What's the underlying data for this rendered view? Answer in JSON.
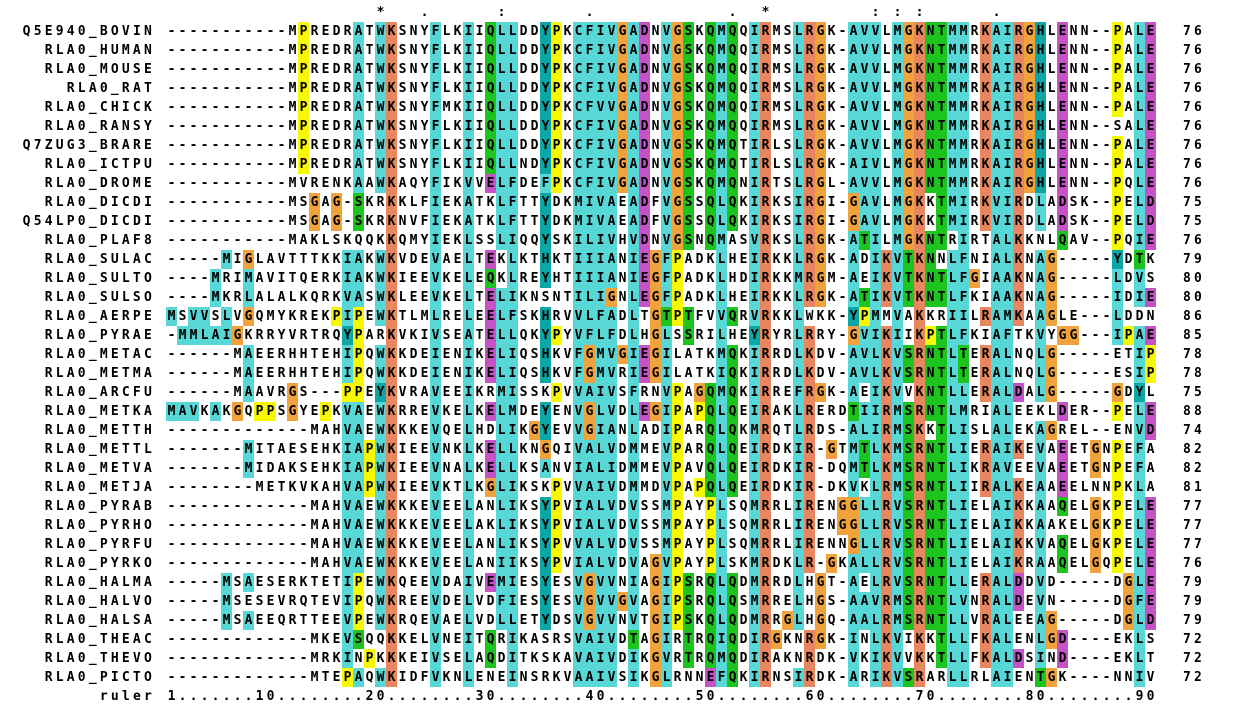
{
  "alignment": {
    "columns": 90,
    "conservation_line": "                   *   .      :       .            .  *         : : :      .              ",
    "ruler": {
      "label": "ruler",
      "line": "1.......10........20........30........40........50........60........70........80........90"
    },
    "palette": {
      "background": "#ffffff",
      "text": "#000000",
      "hydrophobic_cyan": "#58d7d7",
      "aromatic_teal": "#0ba6a6",
      "proline_yellow": "#f8f800",
      "glycine_orange": "#f0a33c",
      "polar_green": "#1ec41e",
      "basic_salmon": "#e8875f",
      "acidic_magenta": "#c653c6"
    },
    "rows": [
      {
        "name": "Q5E940_BOVIN",
        "seq": "-----------MPREDRATWKSNYFLKIIQLLDDYPKCFIVGADNVGSKQMQQIRMSLRGK-AVVLMGKNTMMRKAIRGHLENN--PALE",
        "end": "76"
      },
      {
        "name": "RLA0_HUMAN",
        "seq": "-----------MPREDRATWKSNYFLKIIQLLDDYPKCFIVGADNVGSKQMQQIRMSLRGK-AVVLMGKNTMMRKAIRGHLENN--PALE",
        "end": "76"
      },
      {
        "name": "RLA0_MOUSE",
        "seq": "-----------MPREDRATWKSNYFLKIIQLLDDYPKCFIVGADNVGSKQMQQIRMSLRGK-AVVLMGKNTMMRKAIRGHLENN--PALE",
        "end": "76"
      },
      {
        "name": "RLA0_RAT",
        "seq": "-----------MPREDRATWKSNYFLKIIQLLDDYPKCFIVGADNVGSKQMQQIRMSLRGK-AVVLMGKNTMMRKAIRGHLENN--PALE",
        "end": "76"
      },
      {
        "name": "RLA0_CHICK",
        "seq": "-----------MPREDRATWKSNYFMKIIQLLDDYPKCFVVGADNVGSKQMQQIRMSLRGK-AVVLMGKNTMMRKAIRGHLENN--PALE",
        "end": "76"
      },
      {
        "name": "RLA0_RANSY",
        "seq": "-----------MPREDRATWKSNYFLKIIQLLDDYPKCFIVGADNVGSKQMQQIRMSLRGK-AVVLMGKNTMMRKAIRGHLENN--SALE",
        "end": "76"
      },
      {
        "name": "Q7ZUG3_BRARE",
        "seq": "-----------MPREDRATWKSNYFLKIIQLLDDYPKCFIVGADNVGSKQMQTIRLSLRGK-AVVLMGKNTMMRKAIRGHLENN--PALE",
        "end": "76"
      },
      {
        "name": "RLA0_ICTPU",
        "seq": "-----------MPREDRATWKSNYFLKIIQLLNDYPKCFIVGADNVGSKQMQTIRLSLRGK-AIVLMGKNTMMRKAIRGHLENN--PALE",
        "end": "76"
      },
      {
        "name": "RLA0_DROME",
        "seq": "-----------MVRENKAAWKAQYFIKVVELFDEFPKCFIVGADNVGSKQMQNIRTSLRGL-AVVLMGKNTMMRKAIRGHLENN--PQLE",
        "end": "76"
      },
      {
        "name": "RLA0_DICDI",
        "seq": "-----------MSGAG-SKRKKLFIEKATKLFTTYDKMIVAEADFVGSSQLQKIRKSIRGI-GAVLMGKKTMIRKVIRDLADSK--PELD",
        "end": "75"
      },
      {
        "name": "Q54LP0_DICDI",
        "seq": "-----------MSGAG-SKRKNVFIEKATKLFTTYDKMIVAEADFVGSSQLQKIRKSIRGI-GAVLMGKKTMIRKVIRDLADSK--PELD",
        "end": "75"
      },
      {
        "name": "RLA0_PLAF8",
        "seq": "-----------MAKLSKQQKKQMYIEKLSSLIQQYSKILIVHVDNVGSNQMASVRKSLRGK-ATILMGKNTRIRTALKKNLQAV--PQIE",
        "end": "76"
      },
      {
        "name": "RLA0_SULAC",
        "seq": "-----MIGLAVTTTKKIAKWKVDEVAELTEKLKTHKTIIIANIEGFPADKLHEIRKKLRGK-ADIKVTKNNLFNIALKNAG-----YDTK",
        "end": "79"
      },
      {
        "name": "RLA0_SULTO",
        "seq": "----MRIMAVITQERKIAKWKIEEVKELEQKLREYHTIIIANIEGFPADKLHDIRKKMRGM-AEIKVTKNTLFGIAAKNAG-----LDVS",
        "end": "80"
      },
      {
        "name": "RLA0_SULSO",
        "seq": "----MKRLALALKQRKVASWKLEEVKELTELIKNSNTILIGNLEGFPADKLHEIRKKLRGK-ATIKVTKNTLFKIAAKNAG-----IDIE",
        "end": "80"
      },
      {
        "name": "RLA0_AERPE",
        "seq": "MSVVSLVGQMYKREKPIPEWKTLMLRELEELFSKHRVVLFADLTGTPTFVVQRVRKKLWKK-YPMMVAKKRIILRAMKAAGLE---LDDN",
        "end": "86"
      },
      {
        "name": "RLA0_PYRAE",
        "seq": "-MMLAIGKRRYVRTRQYPARKVKIVSEATELLQKYPYVFLFDLHGLSSRILHEYRYRLRRY-GVIKIIKPTLFKIAFTKVYGG---IPAE",
        "end": "85"
      },
      {
        "name": "RLA0_METAC",
        "seq": "------MAEERHHTEHIPQWKKDEIENIKELIQSHKVFGMV­GIEGILATKMQKIRRDLKDV-AVLKVSRNTLTERALNQLG-----ETIP",
        "end": "78"
      },
      {
        "name": "RLA0_METMA",
        "seq": "------MAEERHHTEHIPQWKKDEIENIKELIQSHKVFGMVRIEGILATKIQKIRRDLKDV-AVLKVSRNTLTERALNQLG-----ESIP",
        "end": "78"
      },
      {
        "name": "RLA0_ARCFU",
        "seq": "------MAAVRGS---PPEYKVRAVEEIKRMISSKPVVAIVSFRNVPAGQMQKIRREFRGK-AEIKVVKNTLLERALDALG-----GDYL",
        "end": "75"
      },
      {
        "name": "RLA0_METKA",
        "seq": "MAVKAKGQPPSGYEPKVAEWKRREVKELKELMDEYENVGLVDLEGIPAPQLQEIRAKLRERDTIIRMSRNTLMRIALEEKLDER--PELE",
        "end": "88"
      },
      {
        "name": "RLA0_METTH",
        "seq": "-------------MAHVAEWKKKEVQELHDLIKGYEVVGIANLADIPARQLQKMRQTLRDS-ALIRMSKKTLISLALEKAGREL--ENVD",
        "end": "74"
      },
      {
        "name": "RLA0_METTL",
        "seq": "-------MITAESEHKIAPWKIEEVNKLKELLKNGQIVALVDMMEVPARQLQEIRDKIR-GTMTLKMSRNTLIERAIKEVAEETGNPEFA",
        "end": "82"
      },
      {
        "name": "RLA0_METVA",
        "seq": "-------MIDAKSEHKIAPWKIEEVNALKELLKSANVIALIDMMEVPAVQLQEIRDKIR-DQMTLKMSRNTLIKRAVEEVAEETGNPEFA",
        "end": "82"
      },
      {
        "name": "RLA0_METJA",
        "seq": "--------METKVKAHVAPWKIEEVKTLKGLIKSKPVVAIVDMMDVPAPQLQEIRDKIR-DKVKLRMSRNTLIIRALKEAAEELNNPKLA",
        "end": "81"
      },
      {
        "name": "RLA0_PYRAB",
        "seq": "-------------MAHVAEWKKKEVEELANLIKSYPVIALVDVSSMPAYPLSQMRRLIRENGGLLRVSRNTLIELAIKKAAQELGKPELE",
        "end": "77"
      },
      {
        "name": "RLA0_PYRHO",
        "seq": "-------------MAHVAEWKKKEVEELAKLIKSYPVIALVDVSSMPAYPLSQMRRLIRENGGLLRVSRNTLIELAIKKAAKELGKPELE",
        "end": "77"
      },
      {
        "name": "RLA0_PYRFU",
        "seq": "-------------MAHVAEWKKKEVEELANLIKSYPVVALVDVSSMPAYPLSQMRRLIRENNGLLRVSRNTLIELAIKKVAQELGKPELE",
        "end": "77"
      },
      {
        "name": "RLA0_PYRKO",
        "seq": "-------------MAHVAEWKKKEVEELANIIKSYPVIALVDVAGVPAYPLSKMRDKLR-GKALLRVSRNTLIELAIKRAAQELGQPELE",
        "end": "76"
      },
      {
        "name": "RLA0_HALMA",
        "seq": "-----MSAESERKTETIPEWKQEEVDAIVEMIESYESVGVVNIAGIPSRQLQDMRRDLHGT-AELRVSRNTLLERALDDVD-----DGLE",
        "end": "79"
      },
      {
        "name": "RLA0_HALVO",
        "seq": "-----MSESEVRQTEVIPQWKREEVDELVDFIESYESVGVVGVAGIPSRQLQSMRRELHGS-AAVRMSRNTLVNRALDEVN-----DGFE",
        "end": "79"
      },
      {
        "name": "RLA0_HALSA",
        "seq": "-----MSAEEQRTTEEVPEWKRQEVAELVDLLETYDSVGVVNVTGIPSKQLQDMRRGLHGQ-AALRMSRNTLLVRALEEAG-----DGLD",
        "end": "79"
      },
      {
        "name": "RLA0_THEAC",
        "seq": "-------------MKEVSQQKKELVNEITQRIKASRSVAIVDTAGIRTRQIQDIRGKNRGK-INLKVIKKTLLFKALENLGD----EKLS",
        "end": "72"
      },
      {
        "name": "RLA0_THEVO",
        "seq": "-------------MRKINPKKKEIVSELAQDITKSKAVAIVDIKGVRTRQMQDIRAKNRDK-VKIKVVKKTLLFKALDSIND----EKLT",
        "end": "72"
      },
      {
        "name": "RLA0_PICTO",
        "seq": "-------------MTEPAQWKIDFVKNLENEINSRKVAAIVSIKGLRNNEFQKIRNSIRDK-ARIKVSRARLLRLAIENTGK----NNIV",
        "end": "72"
      }
    ]
  }
}
